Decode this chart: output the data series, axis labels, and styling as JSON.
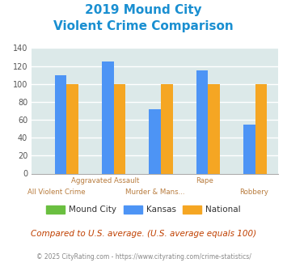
{
  "title_line1": "2019 Mound City",
  "title_line2": "Violent Crime Comparison",
  "categories": [
    "All Violent Crime",
    "Aggravated Assault",
    "Murder & Mans...",
    "Rape",
    "Robbery"
  ],
  "mound_city": [
    0,
    0,
    0,
    0,
    0
  ],
  "kansas": [
    110,
    125,
    72,
    115,
    55
  ],
  "national": [
    100,
    100,
    100,
    100,
    100
  ],
  "mound_city_color": "#6abf40",
  "kansas_color": "#4d94f5",
  "national_color": "#f5a623",
  "ylim": [
    0,
    140
  ],
  "yticks": [
    0,
    20,
    40,
    60,
    80,
    100,
    120,
    140
  ],
  "background_color": "#dce9e9",
  "grid_color": "#ffffff",
  "title_color": "#1a8fd1",
  "label_color_top": "#b87c3e",
  "label_color_bot": "#b87c3e",
  "legend_text_color": "#333333",
  "footer_text": "Compared to U.S. average. (U.S. average equals 100)",
  "copyright_text": "© 2025 CityRating.com - https://www.cityrating.com/crime-statistics/",
  "footer_color": "#c04000",
  "copyright_color": "#888888",
  "labels_top": [
    "",
    "Aggravated Assault",
    "",
    "Rape",
    ""
  ],
  "labels_bottom": [
    "All Violent Crime",
    "",
    "Murder & Mans...",
    "",
    "Robbery"
  ]
}
